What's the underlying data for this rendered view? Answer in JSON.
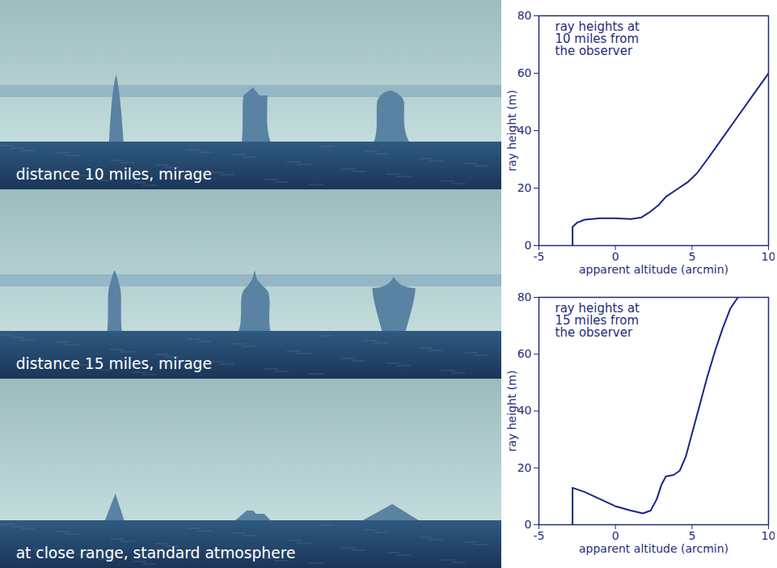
{
  "chart_data": [
    {
      "type": "line",
      "annotation": "ray heights at\n10 miles from\nthe observer",
      "x_label": "apparent altitude (arcmin)",
      "y_label": "ray height (m)",
      "xlim": [
        -5,
        10
      ],
      "ylim": [
        0,
        80
      ],
      "xticks": [
        -5,
        0,
        5,
        10
      ],
      "yticks": [
        0,
        20,
        40,
        60,
        80
      ],
      "x": [
        -2.8,
        -2.8,
        -2.5,
        -2,
        -1,
        0,
        1,
        1.7,
        2.2,
        2.8,
        3.3,
        4,
        4.7,
        5.3,
        6,
        7,
        8,
        9,
        10
      ],
      "series": [
        {
          "color": "#1a2585",
          "values": [
            0,
            6.5,
            8,
            9,
            9.5,
            9.5,
            9.2,
            9.8,
            11.5,
            14,
            17,
            19.5,
            22,
            25,
            30,
            37.5,
            45,
            52.5,
            60
          ]
        }
      ]
    },
    {
      "type": "line",
      "annotation": "ray heights at\n15 miles from\nthe observer",
      "x_label": "apparent altitude (arcmin)",
      "y_label": "ray height (m)",
      "xlim": [
        -5,
        10
      ],
      "ylim": [
        0,
        80
      ],
      "xticks": [
        -5,
        0,
        5,
        10
      ],
      "yticks": [
        0,
        20,
        40,
        60,
        80
      ],
      "x": [
        -2.8,
        -2.8,
        -2,
        -1,
        0,
        1,
        1.8,
        2.3,
        2.7,
        3,
        3.3,
        3.8,
        4.2,
        4.6,
        5,
        5.5,
        6,
        6.5,
        7,
        7.5,
        8
      ],
      "series": [
        {
          "color": "#1a2585",
          "values": [
            0,
            13,
            11.5,
            9,
            6.5,
            5,
            4,
            5,
            9,
            14,
            17,
            17.5,
            19,
            24,
            32,
            42,
            52,
            61,
            69,
            76,
            80
          ]
        }
      ]
    }
  ],
  "scenes": [
    {
      "label": "distance 10 miles, mirage"
    },
    {
      "label": "distance 15 miles, mirage"
    },
    {
      "label": "at close range, standard atmosphere"
    }
  ]
}
